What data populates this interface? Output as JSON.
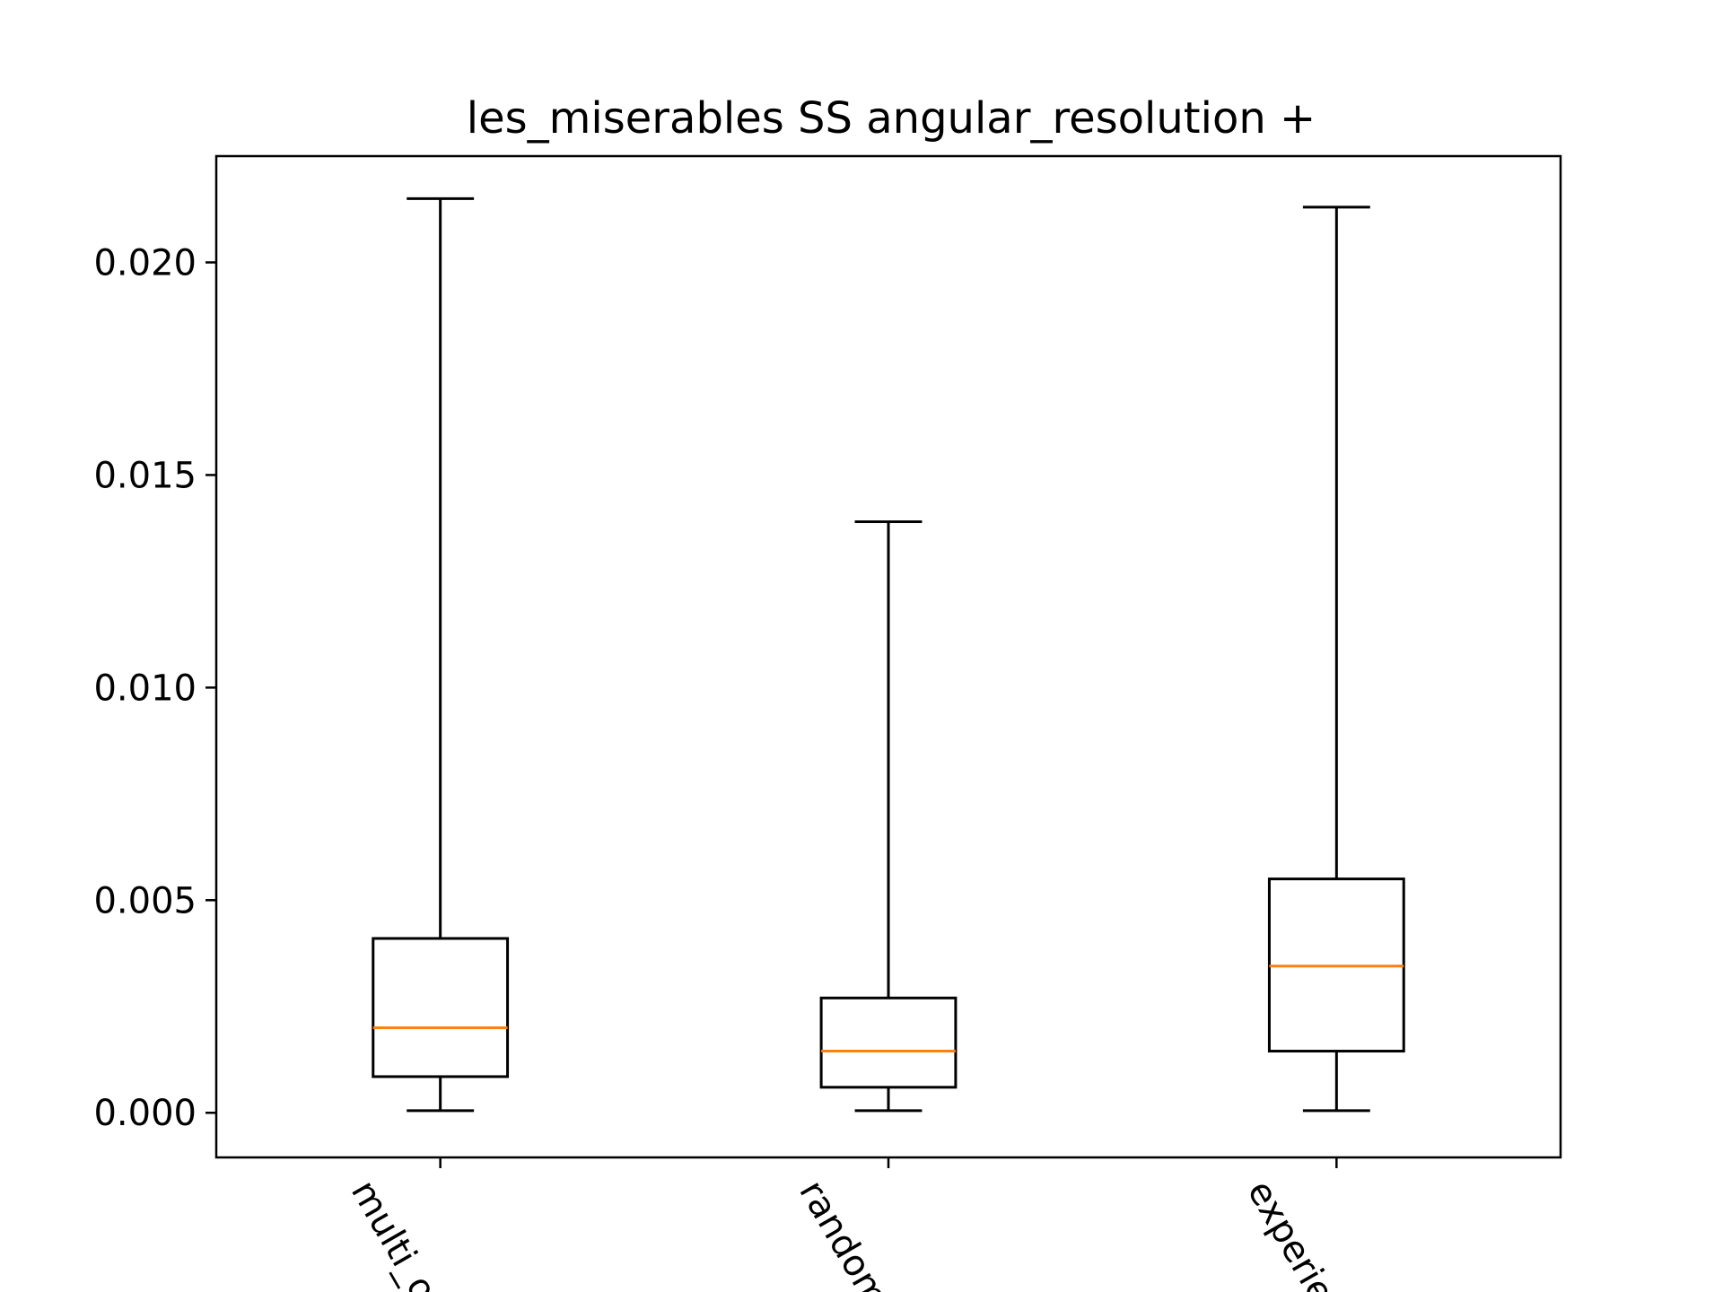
{
  "chart_data": {
    "type": "box",
    "title": "les_miserables SS angular_resolution +",
    "xlabel": "",
    "ylabel": "",
    "categories": [
      "multi_o",
      "random",
      "experie"
    ],
    "categories_note_visible": "labels are rotated and clipped at the bottom edge",
    "ylim": [
      -0.00105,
      0.0225
    ],
    "yticks": [
      0.0,
      0.005,
      0.01,
      0.015,
      0.02
    ],
    "ytick_labels": [
      "0.000",
      "0.005",
      "0.010",
      "0.015",
      "0.020"
    ],
    "grid": false,
    "boxes": [
      {
        "name": "multi_o",
        "whisker_low": 5e-05,
        "q1": 0.00085,
        "median": 0.002,
        "q3": 0.0041,
        "whisker_high": 0.0215
      },
      {
        "name": "random",
        "whisker_low": 5e-05,
        "q1": 0.0006,
        "median": 0.00145,
        "q3": 0.0027,
        "whisker_high": 0.0139
      },
      {
        "name": "experie",
        "whisker_low": 5e-05,
        "q1": 0.00145,
        "median": 0.00345,
        "q3": 0.0055,
        "whisker_high": 0.0213
      }
    ],
    "colors": {
      "box": "#000000",
      "median": "#ff7f0e"
    }
  }
}
